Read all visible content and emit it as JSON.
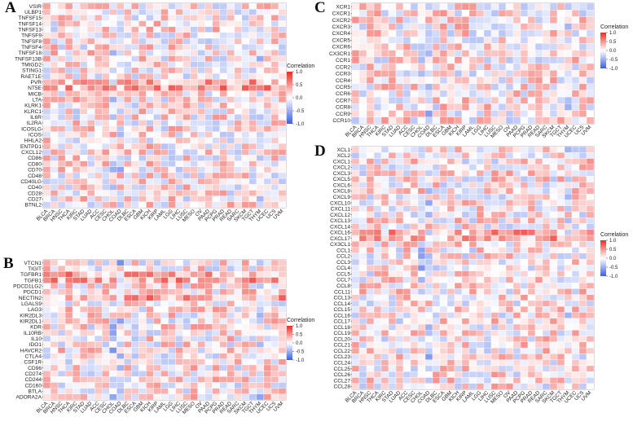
{
  "panel_letters": {
    "A": "A",
    "B": "B",
    "C": "C",
    "D": "D"
  },
  "colors": {
    "negative": "#3b5ee6",
    "zero": "#ffffff",
    "positive": "#ee2a22",
    "grid": "#ffffff"
  },
  "chart_data": [
    {
      "panel": "A",
      "type": "heatmap",
      "title": "",
      "rows": [
        "VSIR",
        "ULBP1",
        "TNFSF15",
        "TNFSF14",
        "TNFSF13",
        "TNFSF9",
        "TNFSF8",
        "TNFSF4",
        "TNFSF18",
        "TNFSF13B",
        "TMIGD2",
        "STING1",
        "RAET1E",
        "PVR",
        "NT5E",
        "MICB",
        "LTA",
        "KLRK1",
        "KLRC1",
        "IL6R",
        "IL2RA",
        "ICOSLG",
        "ICOS",
        "HHLA2",
        "ENTPD1",
        "CXCL12",
        "CD86",
        "CD80",
        "CD70",
        "CD48",
        "CD40LG",
        "CD40",
        "CD28",
        "CD27",
        "BTNL2"
      ],
      "columns": [
        "BLCA",
        "BRCA",
        "HNSC",
        "THCA",
        "KIRC",
        "STAD",
        "LUAD",
        "ACC",
        "CESC",
        "CHOL",
        "COAD",
        "DLBC",
        "ESCA",
        "GBM",
        "KICH",
        "KIRP",
        "LAML",
        "LGG",
        "LIHC",
        "LUSC",
        "MESO",
        "OV",
        "PAAD",
        "PCPG",
        "PRAD",
        "READ",
        "SARC",
        "SKCM",
        "TGCT",
        "THYM",
        "UCEC",
        "UCS",
        "UVM"
      ],
      "legend": {
        "title": "Correlation",
        "ticks": [
          1.0,
          0.5,
          0.0,
          -0.5,
          -1.0
        ],
        "tick_labels": [
          "1.0",
          "0.5",
          "0.0",
          "-0.5",
          "-1.0"
        ],
        "range": [
          -1.0,
          1.0
        ]
      },
      "values": "approximate per-cell correlations (estimated, range -1 to 1)"
    },
    {
      "panel": "B",
      "type": "heatmap",
      "title": "",
      "rows": [
        "VTCN1",
        "TIGIT",
        "TGFBR1",
        "TGFB1",
        "PDCD1LG2",
        "PDCD1",
        "NECTIN2",
        "LGALS9",
        "LAG3",
        "KIR2DL3",
        "KIR2DL1",
        "KDR",
        "IL10RB",
        "IL10",
        "IDO1",
        "HAVCR2",
        "CTLA4",
        "CSF1R",
        "CD96",
        "CD274",
        "CD244",
        "CD160",
        "BTLA",
        "ADORA2A"
      ],
      "columns": [
        "BLCA",
        "BRCA",
        "HNSC",
        "THCA",
        "KIRC",
        "STAD",
        "LUAD",
        "ACC",
        "CESC",
        "CHOL",
        "COAD",
        "DLBC",
        "ESCA",
        "GBM",
        "KICH",
        "KIRP",
        "LAML",
        "LGG",
        "LIHC",
        "LUSC",
        "MESO",
        "OV",
        "PAAD",
        "PCPG",
        "PRAD",
        "READ",
        "SARC",
        "SKCM",
        "TGCT",
        "THYM",
        "UCEC",
        "UCS",
        "UVM"
      ],
      "legend": {
        "title": "Correlation",
        "ticks": [
          1.0,
          0.5,
          0.0,
          -0.5,
          -1.0
        ],
        "tick_labels": [
          "1.0",
          "0.5",
          "0.0",
          "-0.5",
          "-1.0"
        ],
        "range": [
          -1.0,
          1.0
        ]
      }
    },
    {
      "panel": "C",
      "type": "heatmap",
      "title": "",
      "rows": [
        "XCR1",
        "CXCR1",
        "CXCR2",
        "CXCR3",
        "CXCR4",
        "CXCR5",
        "CXCR6",
        "CX3CR1",
        "CCR1",
        "CCR2",
        "CCR3",
        "CCR4",
        "CCR5",
        "CCR6",
        "CCR7",
        "CCR8",
        "CCR9",
        "CCR10"
      ],
      "columns": [
        "BLCA",
        "BRCA",
        "HNSC",
        "THCA",
        "KIRC",
        "STAD",
        "LUAD",
        "ACC",
        "CESC",
        "CHOL",
        "COAD",
        "DLBC",
        "ESCA",
        "GBM",
        "KICH",
        "KIRP",
        "LAML",
        "LGG",
        "LIHC",
        "LUSC",
        "MESO",
        "OV",
        "PAAD",
        "PCPG",
        "PRAD",
        "READ",
        "SARC",
        "SKCM",
        "TGCT",
        "THYM",
        "UCEC",
        "UCS",
        "UVM"
      ],
      "legend": {
        "title": "Correlation",
        "ticks": [
          1.0,
          0.5,
          0.0,
          -0.5,
          -1.0
        ],
        "tick_labels": [
          "1.0",
          "0.5",
          "0.0",
          "-0.5",
          "-1.0"
        ],
        "range": [
          -1.0,
          1.0
        ]
      }
    },
    {
      "panel": "D",
      "type": "heatmap",
      "title": "",
      "rows": [
        "XCL1",
        "XCL2",
        "CXCL1",
        "CXCL2",
        "CXCL3",
        "CXCL5",
        "CXCL6",
        "CXCL8",
        "CXCL9",
        "CXCL10",
        "CXCL11",
        "CXCL12",
        "CXCL13",
        "CXCL14",
        "CXCL16",
        "CXCL17",
        "CX3CL1",
        "CCL1",
        "CCL2",
        "CCL3",
        "CCL4",
        "CCL5",
        "CCL7",
        "CCL8",
        "CCL11",
        "CCL13",
        "CCL14",
        "CCL15",
        "CCL16",
        "CCL17",
        "CCL18",
        "CCL19",
        "CCL20",
        "CCL21",
        "CCL22",
        "CCL23",
        "CCL24",
        "CCL25",
        "CCL26",
        "CCL27",
        "CCL28"
      ],
      "columns": [
        "BLCA",
        "BRCA",
        "HNSC",
        "THCA",
        "KIRC",
        "STAD",
        "LUAD",
        "ACC",
        "CESC",
        "CHOL",
        "COAD",
        "DLBC",
        "ESCA",
        "GBM",
        "KICH",
        "KIRP",
        "LAML",
        "LGG",
        "LIHC",
        "LUSC",
        "MESO",
        "OV",
        "PAAD",
        "PCPG",
        "PRAD",
        "READ",
        "SARC",
        "SKCM",
        "TGCT",
        "THYM",
        "UCEC",
        "UCS",
        "UVM"
      ],
      "legend": {
        "title": "Correlation",
        "ticks": [
          1.0,
          0.5,
          0.0,
          -0.5,
          -1.0
        ],
        "tick_labels": [
          "1.0",
          "0.5",
          "0.0",
          "-0.5",
          "-1.0"
        ],
        "range": [
          -1.0,
          1.0
        ]
      }
    }
  ]
}
